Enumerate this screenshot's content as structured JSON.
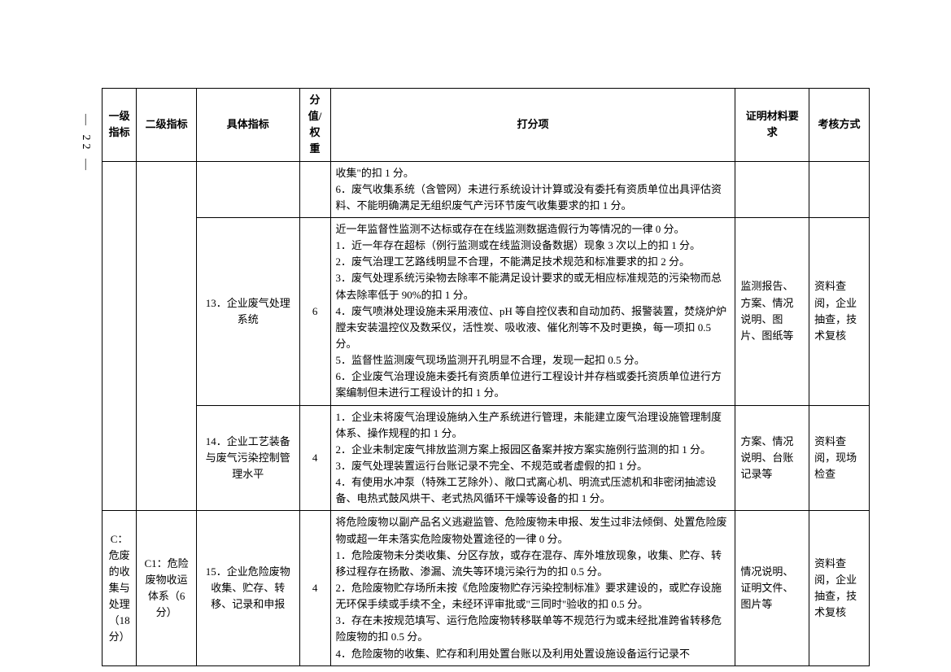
{
  "page_number_marker": "— 22 —",
  "header": {
    "col1": "一级指标",
    "col2": "二级指标",
    "col3": "具体指标",
    "col4": "分值/权重",
    "col5": "打分项",
    "col6": "证明材料要求",
    "col7": "考核方式"
  },
  "rows": [
    {
      "level1": "",
      "level2": "",
      "indicator": "",
      "score": "",
      "criteria": "收集\"的扣 1 分。\n6．废气收集系统（含管网）未进行系统设计计算或没有委托有资质单位出具评估资料、不能明确满足无组织废气产污环节废气收集要求的扣 1 分。",
      "evidence": "",
      "method": ""
    },
    {
      "level1": "",
      "level2": "",
      "indicator": "13．企业废气处理系统",
      "score": "6",
      "criteria": "近一年监督性监测不达标或存在在线监测数据造假行为等情况的一律 0 分。\n1．近一年存在超标（例行监测或在线监测设备数据）现象 3 次以上的扣 1 分。\n2．废气治理工艺路线明显不合理，不能满足技术规范和标准要求的扣 2 分。\n3．废气处理系统污染物去除率不能满足设计要求的或无相应标准规范的污染物而总体去除率低于 90%的扣 1 分。\n4．废气喷淋处理设施未采用液位、pH 等自控仪表和自动加药、报警装置，焚烧炉炉膛未安装温控仪及数采仪，活性炭、吸收液、催化剂等不及时更换，每一项扣 0.5 分。\n5．监督性监测废气现场监测开孔明显不合理，发现一起扣 0.5 分。\n6．企业废气治理设施未委托有资质单位进行工程设计并存档或委托资质单位进行方案编制但未进行工程设计的扣 1 分。",
      "evidence": "监测报告、方案、情况说明、图片、图纸等",
      "method": "资料查阅，企业抽查，技术复核"
    },
    {
      "level1": "",
      "level2": "",
      "indicator": "14．企业工艺装备与废气污染控制管理水平",
      "score": "4",
      "criteria": "1．企业未将废气治理设施纳入生产系统进行管理，未能建立废气治理设施管理制度体系、操作规程的扣 1 分。\n2．企业未制定废气排放监测方案上报园区备案并按方案实施例行监测的扣 1 分。\n3．废气处理装置运行台账记录不完全、不规范或者虚假的扣 1 分。\n4．有使用水冲泵（特殊工艺除外）、敞口式离心机、明流式压滤机和非密闭抽滤设备、电热式鼓风烘干、老式热风循环干燥等设备的扣 1 分。",
      "evidence": "方案、情况说明、台账记录等",
      "method": "资料查阅，现场检查"
    },
    {
      "level1": "C：危废的收集与处理（18分）",
      "level2": "C1：危险废物收运体系（6 分）",
      "indicator": "15．企业危险废物收集、贮存、转移、记录和申报",
      "score": "4",
      "criteria": "将危险废物以副产品名义逃避监管、危险废物未申报、发生过非法倾倒、处置危险废物或超一年未落实危险废物处置途径的一律 0 分。\n1．危险废物未分类收集、分区存放，或存在混存、库外堆放现象，收集、贮存、转移过程存在扬散、渗漏、流失等环境污染行为的扣 0.5 分。\n2．危险废物贮存场所未按《危险废物贮存污染控制标准》要求建设的，或贮存设施无环保手续或手续不全，未经环评审批或\"三同时\"验收的扣 0.5 分。\n3．存在未按规范填写、运行危险废物转移联单等不规范行为或未经批准跨省转移危险废物的扣 0.5 分。\n4．危险废物的收集、贮存和利用处置台账以及利用处置设施设备运行记录不",
      "evidence": "情况说明、证明文件、图片等",
      "method": "资料查阅，企业抽查，技术复核"
    }
  ]
}
